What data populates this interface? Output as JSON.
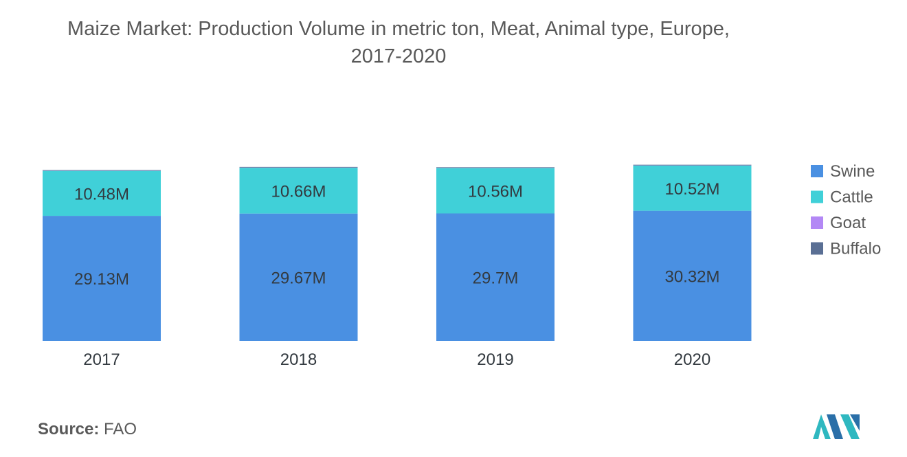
{
  "chart_data": {
    "type": "bar",
    "stacked": true,
    "title_line1": "Maize Market: Production Volume in metric ton, Meat, Animal type, Europe,",
    "title_line2": "2017-2020",
    "categories": [
      "2017",
      "2018",
      "2019",
      "2020"
    ],
    "series": [
      {
        "name": "Swine",
        "color": "#4a90e2",
        "values": [
          29.13,
          29.67,
          29.7,
          30.32
        ],
        "labels": [
          "29.13M",
          "29.67M",
          "29.7M",
          "30.32M"
        ]
      },
      {
        "name": "Cattle",
        "color": "#40d0d8",
        "values": [
          10.48,
          10.66,
          10.56,
          10.52
        ],
        "labels": [
          "10.48M",
          "10.66M",
          "10.56M",
          "10.52M"
        ]
      },
      {
        "name": "Goat",
        "color": "#b388f5",
        "values": [
          0.05,
          0.05,
          0.05,
          0.05
        ]
      },
      {
        "name": "Buffalo",
        "color": "#5a6f94",
        "values": [
          0.15,
          0.15,
          0.15,
          0.15
        ]
      }
    ],
    "unit": "M",
    "ylim": [
      0,
      40.99
    ],
    "grid": false,
    "legend_position": "right"
  },
  "source": {
    "label": "Source:",
    "value": "FAO"
  },
  "logo_icon": "mordor-intelligence-logo-icon"
}
